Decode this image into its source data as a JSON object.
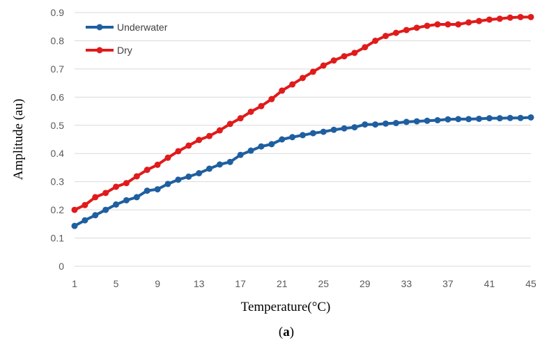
{
  "chart_data": {
    "type": "line",
    "x": [
      1,
      2,
      3,
      4,
      5,
      6,
      7,
      8,
      9,
      10,
      11,
      12,
      13,
      14,
      15,
      16,
      17,
      18,
      19,
      20,
      21,
      22,
      23,
      24,
      25,
      26,
      27,
      28,
      29,
      30,
      31,
      32,
      33,
      34,
      35,
      36,
      37,
      38,
      39,
      40,
      41,
      42,
      43,
      44,
      45
    ],
    "x_tick_labels": [
      "1",
      "5",
      "9",
      "13",
      "17",
      "21",
      "25",
      "29",
      "33",
      "37",
      "41",
      "45"
    ],
    "y_tick_labels": [
      "0",
      "0.1",
      "0.2",
      "0.3",
      "0.4",
      "0.5",
      "0.6",
      "0.7",
      "0.8",
      "0.9"
    ],
    "ylim": [
      0,
      0.9
    ],
    "xlim": [
      1,
      45
    ],
    "xlabel": "Temperature(°C)",
    "ylabel": "Amplitude (au)",
    "grid": "horizontal",
    "legend_position": "top-left",
    "series": [
      {
        "name": "Underwater",
        "color": "#1f5fa0",
        "values": [
          0.143,
          0.163,
          0.181,
          0.2,
          0.219,
          0.234,
          0.245,
          0.268,
          0.273,
          0.292,
          0.307,
          0.318,
          0.33,
          0.346,
          0.361,
          0.37,
          0.395,
          0.41,
          0.425,
          0.433,
          0.45,
          0.458,
          0.465,
          0.472,
          0.477,
          0.484,
          0.489,
          0.493,
          0.503,
          0.503,
          0.506,
          0.508,
          0.512,
          0.514,
          0.516,
          0.518,
          0.521,
          0.522,
          0.522,
          0.523,
          0.525,
          0.525,
          0.526,
          0.526,
          0.528
        ]
      },
      {
        "name": "Dry",
        "color": "#e01b1b",
        "values": [
          0.2,
          0.217,
          0.245,
          0.26,
          0.282,
          0.295,
          0.319,
          0.342,
          0.36,
          0.385,
          0.408,
          0.428,
          0.448,
          0.462,
          0.482,
          0.505,
          0.525,
          0.548,
          0.568,
          0.593,
          0.623,
          0.645,
          0.668,
          0.69,
          0.712,
          0.73,
          0.745,
          0.757,
          0.777,
          0.8,
          0.817,
          0.828,
          0.838,
          0.846,
          0.853,
          0.858,
          0.858,
          0.858,
          0.865,
          0.87,
          0.875,
          0.878,
          0.882,
          0.884,
          0.884
        ]
      }
    ]
  },
  "caption": {
    "open": "(",
    "letter": "a",
    "close": ")"
  }
}
